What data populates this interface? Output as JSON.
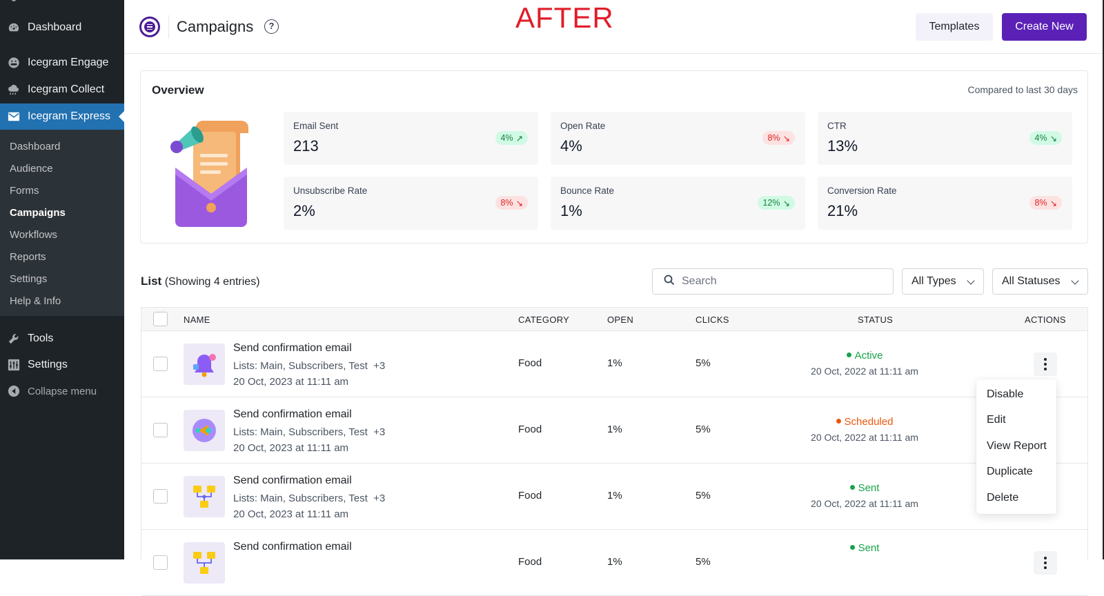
{
  "sidebar": {
    "items": [
      {
        "label": "Dashboard",
        "icon": "dashboard-icon"
      },
      {
        "label": "Icegram Engage",
        "icon": "engage-icon"
      },
      {
        "label": "Icegram Collect",
        "icon": "collect-icon"
      },
      {
        "label": "Icegram Express",
        "icon": "mail-icon"
      }
    ],
    "submenu": [
      "Dashboard",
      "Audience",
      "Forms",
      "Campaigns",
      "Workflows",
      "Reports",
      "Settings",
      "Help & Info"
    ],
    "current_submenu": "Campaigns",
    "bottom": [
      {
        "label": "Tools",
        "icon": "wrench-icon"
      },
      {
        "label": "Settings",
        "icon": "settings-icon"
      },
      {
        "label": "Collapse menu",
        "icon": "collapse-icon"
      }
    ]
  },
  "header": {
    "title": "Campaigns",
    "help": "?",
    "annotation": "AFTER",
    "templates_label": "Templates",
    "create_label": "Create New"
  },
  "overview": {
    "title": "Overview",
    "compare": "Compared to last 30 days",
    "stats": [
      {
        "label": "Email Sent",
        "value": "213",
        "change": "4%",
        "trend": "up"
      },
      {
        "label": "Open Rate",
        "value": "4%",
        "change": "8%",
        "trend": "down"
      },
      {
        "label": "CTR",
        "value": "13%",
        "change": "4%",
        "trend": "down-good"
      },
      {
        "label": "Unsubscribe Rate",
        "value": "2%",
        "change": "8%",
        "trend": "down"
      },
      {
        "label": "Bounce Rate",
        "value": "1%",
        "change": "12%",
        "trend": "down-good"
      },
      {
        "label": "Conversion Rate",
        "value": "21%",
        "change": "8%",
        "trend": "down"
      }
    ]
  },
  "list": {
    "title": "List",
    "subtitle": "(Showing 4 entries)",
    "search_placeholder": "Search",
    "type_filter": "All Types",
    "status_filter": "All Statuses",
    "columns": [
      "NAME",
      "CATEGORY",
      "OPEN",
      "CLICKS",
      "STATUS",
      "ACTIONS"
    ],
    "rows": [
      {
        "name": "Send confirmation email",
        "lists": "Lists: Main, Subscribers, Test",
        "more": "+3",
        "date": "20 Oct, 2023 at 11:11 am",
        "category": "Food",
        "open": "1%",
        "clicks": "5%",
        "status": "Active",
        "status_color": "#16a34a",
        "status_date": "20 Oct, 2022 at 11:11 am",
        "thumb": "bell"
      },
      {
        "name": "Send confirmation email",
        "lists": "Lists: Main, Subscribers, Test",
        "more": "+3",
        "date": "20 Oct, 2023 at 11:11 am",
        "category": "Food",
        "open": "1%",
        "clicks": "5%",
        "status": "Scheduled",
        "status_color": "#ea580c",
        "status_date": "20 Oct, 2022 at 11:11 am",
        "thumb": "megaphone"
      },
      {
        "name": "Send confirmation email",
        "lists": "Lists: Main, Subscribers, Test",
        "more": "+3",
        "date": "20 Oct, 2023 at 11:11 am",
        "category": "Food",
        "open": "1%",
        "clicks": "5%",
        "status": "Sent",
        "status_color": "#16a34a",
        "status_date": "20 Oct, 2022 at 11:11 am",
        "thumb": "workflow"
      },
      {
        "name": "Send confirmation email",
        "lists": "",
        "more": "",
        "date": "",
        "category": "Food",
        "open": "1%",
        "clicks": "5%",
        "status": "Sent",
        "status_color": "#16a34a",
        "status_date": "",
        "thumb": "workflow"
      }
    ]
  },
  "actions_menu": [
    "Disable",
    "Edit",
    "View Report",
    "Duplicate",
    "Delete"
  ]
}
